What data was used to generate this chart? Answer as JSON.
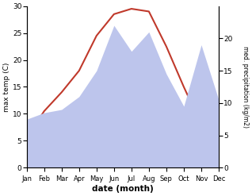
{
  "months": [
    "Jan",
    "Feb",
    "Mar",
    "Apr",
    "May",
    "Jun",
    "Jul",
    "Aug",
    "Sep",
    "Oct",
    "Nov",
    "Dec"
  ],
  "temp": [
    5.5,
    10.5,
    14.0,
    18.0,
    24.5,
    28.5,
    29.5,
    29.0,
    22.5,
    15.0,
    8.0,
    7.0
  ],
  "precip": [
    7.5,
    8.5,
    9.0,
    11.0,
    15.0,
    22.0,
    18.0,
    21.0,
    14.5,
    9.5,
    19.0,
    10.5
  ],
  "temp_color": "#c0392b",
  "precip_fill_color": "#bdc5ec",
  "temp_ylim": [
    0,
    30
  ],
  "precip_ylim": [
    0,
    25
  ],
  "precip_yticks": [
    0,
    5,
    10,
    15,
    20
  ],
  "temp_yticks": [
    0,
    5,
    10,
    15,
    20,
    25,
    30
  ],
  "xlabel": "date (month)",
  "ylabel_left": "max temp (C)",
  "ylabel_right": "med. precipitation (kg/m2)",
  "background_color": "#ffffff",
  "fig_width": 3.18,
  "fig_height": 2.47,
  "dpi": 100
}
